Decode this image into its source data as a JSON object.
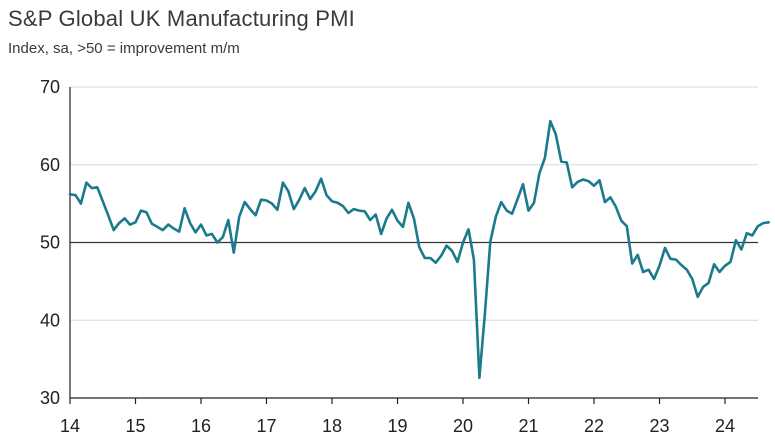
{
  "title": "S&P Global UK Manufacturing PMI",
  "subtitle": "Index, sa, >50 = improvement m/m",
  "colors": {
    "line": "#1b7a8c",
    "grid": "#d9d9d9",
    "axis": "#222222",
    "reference": "#333333"
  },
  "chart_data": {
    "type": "line",
    "title": "S&P Global UK Manufacturing PMI",
    "subtitle": "Index, sa, >50 = improvement m/m",
    "xlabel": "",
    "ylabel": "",
    "ylim": [
      30,
      70
    ],
    "yticks": [
      30,
      40,
      50,
      60,
      70
    ],
    "xticks": [
      "14",
      "15",
      "16",
      "17",
      "18",
      "19",
      "20",
      "21",
      "22",
      "23",
      "24"
    ],
    "grid": "horizontal",
    "reference_line": 50,
    "x_start": "2014-01",
    "series": [
      {
        "name": "",
        "values": [
          56.2,
          56.1,
          55.0,
          57.7,
          57.0,
          57.1,
          55.3,
          53.5,
          51.6,
          52.5,
          53.1,
          52.3,
          52.6,
          54.1,
          53.9,
          52.4,
          52.0,
          51.6,
          52.3,
          51.8,
          51.4,
          54.4,
          52.5,
          51.3,
          52.3,
          50.9,
          51.1,
          50.0,
          50.7,
          52.9,
          48.7,
          53.3,
          55.2,
          54.3,
          53.5,
          55.5,
          55.4,
          55.0,
          54.2,
          57.7,
          56.6,
          54.3,
          55.5,
          57.0,
          55.6,
          56.6,
          58.2,
          56.1,
          55.3,
          55.1,
          54.7,
          53.8,
          54.3,
          54.1,
          54.0,
          52.9,
          53.6,
          51.1,
          53.1,
          54.2,
          52.8,
          52.0,
          55.1,
          53.1,
          49.4,
          48.0,
          48.0,
          47.4,
          48.3,
          49.6,
          48.9,
          47.5,
          50.0,
          51.7,
          47.8,
          32.6,
          40.7,
          50.1,
          53.3,
          55.2,
          54.1,
          53.7,
          55.6,
          57.5,
          54.1,
          55.1,
          58.9,
          60.9,
          65.6,
          63.9,
          60.4,
          60.3,
          57.1,
          57.8,
          58.1,
          57.9,
          57.3,
          58.0,
          55.2,
          55.8,
          54.6,
          52.8,
          52.1,
          47.3,
          48.4,
          46.2,
          46.5,
          45.3,
          47.0,
          49.3,
          47.9,
          47.8,
          47.1,
          46.5,
          45.3,
          43.0,
          44.3,
          44.8,
          47.2,
          46.2,
          47.0,
          47.5,
          50.3,
          49.1,
          51.2,
          50.9,
          52.1,
          52.5,
          52.6
        ]
      }
    ]
  }
}
